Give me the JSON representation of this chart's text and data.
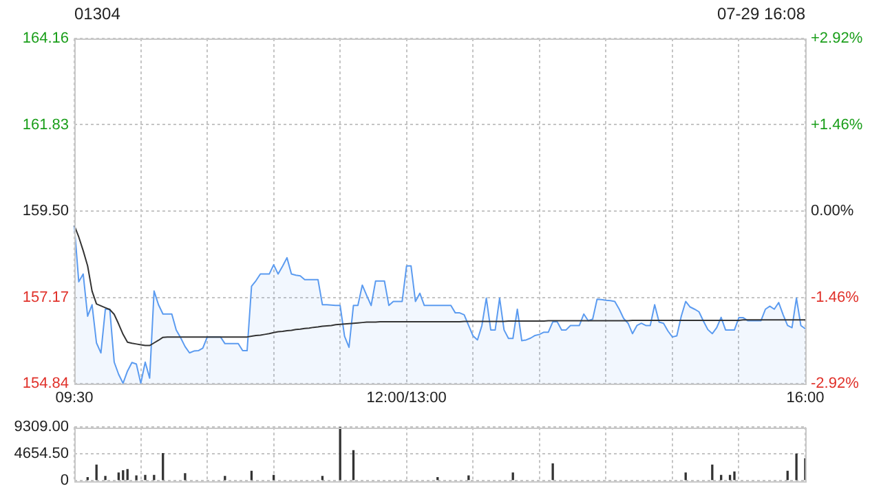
{
  "chart_data": [
    {
      "type": "line",
      "title": "01304",
      "subtitle": "07-29 16:08",
      "categories": [
        "09:30",
        null,
        null,
        null,
        null,
        null,
        null,
        null,
        null,
        null,
        null,
        null,
        null,
        null,
        null,
        null,
        null,
        null,
        null,
        null,
        null,
        null,
        null,
        null,
        null,
        null,
        null,
        null,
        null,
        null,
        null,
        null,
        null,
        null,
        null,
        null,
        null,
        null,
        null,
        null,
        null,
        null,
        null,
        null,
        null,
        null,
        null,
        null,
        null,
        null,
        null,
        null,
        null,
        null,
        null,
        null,
        null,
        null,
        null,
        null,
        null,
        null,
        null,
        null,
        null,
        null,
        null,
        null,
        null,
        null,
        null,
        null,
        null,
        null,
        null,
        "12:00/13:00",
        null,
        null,
        null,
        null,
        null,
        null,
        null,
        null,
        null,
        null,
        null,
        null,
        null,
        null,
        null,
        null,
        null,
        null,
        null,
        null,
        null,
        null,
        null,
        null,
        null,
        null,
        null,
        null,
        null,
        null,
        null,
        null,
        null,
        null,
        null,
        null,
        null,
        null,
        null,
        null,
        null,
        null,
        null,
        null,
        null,
        null,
        null,
        null,
        null,
        null,
        null,
        null,
        null,
        null,
        null,
        null,
        null,
        null,
        null,
        null,
        null,
        null,
        null,
        null,
        null,
        null,
        null,
        null,
        null,
        null,
        null,
        null,
        null,
        null,
        null,
        null,
        null,
        null,
        null,
        null,
        null,
        null,
        null,
        null,
        null,
        null,
        null,
        null,
        null,
        "16:00"
      ],
      "ylim": [
        154.84,
        164.16
      ],
      "yticks": [
        154.84,
        157.17,
        {
          "value": 159.5,
          "label": "159.50"
        },
        161.83,
        164.16
      ],
      "y2lim": [
        -2.92,
        2.92
      ],
      "y2ticks": [
        {
          "value": -2.92,
          "label": "-2.92%"
        },
        {
          "value": -1.46,
          "label": "-1.46%"
        },
        {
          "value": 0,
          "label": "0.00%"
        },
        {
          "value": 1.46,
          "label": "+1.46%"
        },
        {
          "value": 2.92,
          "label": "+2.92%"
        }
      ],
      "grid": true,
      "series": [
        {
          "type": "area",
          "color": "#5b9bf0",
          "values": [
            159.11,
            157.59,
            157.8,
            156.66,
            156.97,
            155.94,
            155.67,
            156.85,
            156.85,
            155.42,
            155.09,
            154.85,
            155.18,
            155.41,
            155.37,
            154.85,
            155.42,
            154.99,
            157.34,
            156.97,
            156.72,
            156.72,
            156.72,
            156.29,
            156.08,
            155.84,
            155.67,
            155.72,
            155.73,
            155.8,
            156.1,
            156.1,
            156.1,
            156.1,
            155.92,
            155.92,
            155.92,
            155.92,
            155.73,
            155.73,
            157.47,
            157.62,
            157.8,
            157.8,
            157.8,
            158.05,
            157.8,
            158.01,
            158.24,
            157.8,
            157.77,
            157.75,
            157.65,
            157.65,
            157.65,
            157.65,
            156.97,
            156.97,
            156.96,
            156.95,
            156.95,
            156.12,
            155.82,
            156.95,
            156.95,
            157.5,
            157.22,
            156.95,
            157.61,
            157.61,
            157.61,
            156.95,
            157.06,
            157.06,
            157.06,
            158.02,
            158.02,
            157.06,
            157.28,
            156.95,
            156.95,
            156.95,
            156.95,
            156.95,
            156.95,
            156.95,
            156.75,
            156.75,
            156.7,
            156.41,
            156.13,
            156.02,
            156.41,
            157.15,
            156.29,
            156.29,
            157.15,
            156.29,
            156.06,
            156.06,
            156.85,
            156.0,
            156.02,
            156.07,
            156.14,
            156.17,
            156.23,
            156.23,
            156.51,
            156.51,
            156.29,
            156.29,
            156.41,
            156.41,
            156.41,
            156.72,
            156.54,
            156.58,
            157.12,
            157.11,
            157.09,
            157.08,
            157.06,
            156.85,
            156.6,
            156.47,
            156.19,
            156.41,
            156.47,
            156.41,
            156.41,
            156.97,
            156.5,
            156.47,
            156.26,
            156.1,
            156.13,
            156.66,
            157.06,
            156.91,
            156.85,
            156.78,
            156.53,
            156.3,
            156.19,
            156.35,
            156.63,
            156.29,
            156.29,
            156.29,
            156.62,
            156.62,
            156.54,
            156.54,
            156.54,
            156.54,
            156.85,
            156.93,
            156.85,
            157.03,
            156.7,
            156.41,
            156.35,
            157.15,
            156.41,
            156.32
          ]
        },
        {
          "type": "line",
          "color": "#333333",
          "values": [
            159.11,
            158.8,
            158.43,
            158.02,
            157.34,
            156.99,
            156.94,
            156.89,
            156.84,
            156.71,
            156.45,
            156.17,
            155.96,
            155.93,
            155.91,
            155.89,
            155.87,
            155.87,
            155.94,
            156.01,
            156.09,
            156.1,
            156.1,
            156.1,
            156.1,
            156.1,
            156.1,
            156.1,
            156.1,
            156.1,
            156.1,
            156.1,
            156.1,
            156.1,
            156.1,
            156.1,
            156.1,
            156.1,
            156.1,
            156.1,
            156.12,
            156.14,
            156.15,
            156.17,
            156.19,
            156.22,
            156.24,
            156.25,
            156.27,
            156.28,
            156.3,
            156.31,
            156.33,
            156.34,
            156.36,
            156.37,
            156.39,
            156.4,
            156.41,
            156.43,
            156.44,
            156.45,
            156.46,
            156.47,
            156.48,
            156.49,
            156.5,
            156.5,
            156.5,
            156.51,
            156.51,
            156.51,
            156.51,
            156.51,
            156.51,
            156.51,
            156.51,
            156.51,
            156.51,
            156.51,
            156.51,
            156.51,
            156.51,
            156.51,
            156.51,
            156.51,
            156.51,
            156.51,
            156.52,
            156.52,
            156.52,
            156.52,
            156.52,
            156.52,
            156.52,
            156.52,
            156.52,
            156.52,
            156.53,
            156.53,
            156.53,
            156.53,
            156.53,
            156.53,
            156.53,
            156.53,
            156.53,
            156.54,
            156.54,
            156.54,
            156.54,
            156.54,
            156.54,
            156.54,
            156.54,
            156.54,
            156.54,
            156.54,
            156.54,
            156.54,
            156.54,
            156.54,
            156.54,
            156.54,
            156.54,
            156.54,
            156.55,
            156.55,
            156.55,
            156.55,
            156.55,
            156.55,
            156.55,
            156.55,
            156.55,
            156.55,
            156.55,
            156.55,
            156.55,
            156.55,
            156.55,
            156.55,
            156.55,
            156.55,
            156.55,
            156.55,
            156.55,
            156.55,
            156.55,
            156.55,
            156.55,
            156.56,
            156.56,
            156.56,
            156.56,
            156.56,
            156.56,
            156.56,
            156.56,
            156.56,
            156.56,
            156.56,
            156.56,
            156.56,
            156.56,
            156.56
          ]
        }
      ]
    },
    {
      "type": "bar",
      "categories": [
        null,
        null,
        null,
        null,
        null,
        null,
        null,
        null,
        null,
        null,
        null,
        null,
        null,
        null,
        null,
        null,
        null,
        null,
        null,
        null,
        null,
        null,
        null,
        null,
        null,
        null,
        null,
        null,
        null,
        null,
        null,
        null,
        null,
        null,
        null,
        null,
        null,
        null,
        null,
        null,
        null,
        null,
        null,
        null,
        null,
        null,
        null,
        null,
        null,
        null,
        null,
        null,
        null,
        null,
        null,
        null,
        null,
        null,
        null,
        null,
        null,
        null,
        null,
        null,
        null,
        null,
        null,
        null,
        null,
        null,
        null,
        null,
        null,
        null,
        null,
        null,
        null,
        null,
        null,
        null,
        null,
        null,
        null,
        null,
        null,
        null,
        null,
        null,
        null,
        null,
        null,
        null,
        null,
        null,
        null,
        null,
        null,
        null,
        null,
        null,
        null,
        null,
        null,
        null,
        null,
        null,
        null,
        null,
        null,
        null,
        null,
        null,
        null,
        null,
        null,
        null,
        null,
        null,
        null,
        null,
        null,
        null,
        null,
        null,
        null,
        null,
        null,
        null,
        null,
        null,
        null,
        null,
        null,
        null,
        null,
        null,
        null,
        null,
        null,
        null,
        null,
        null,
        null,
        null,
        null,
        null,
        null,
        null,
        null,
        null,
        null,
        null,
        null,
        null,
        null,
        null,
        null,
        null,
        null,
        null,
        null,
        null,
        null,
        null,
        null,
        null
      ],
      "ylim": [
        0,
        9309
      ],
      "yticks": [
        0,
        {
          "value": 4654.5,
          "label": "4654.50"
        },
        {
          "value": 9309,
          "label": "9309.00"
        }
      ],
      "grid": true,
      "tick_labels": "y",
      "series": [
        {
          "color": "#333333",
          "values": [
            null,
            null,
            null,
            500,
            null,
            2700,
            null,
            700,
            null,
            null,
            1300,
            1700,
            1900,
            null,
            800,
            null,
            900,
            null,
            900,
            null,
            4700,
            null,
            null,
            null,
            null,
            1200,
            null,
            null,
            null,
            null,
            null,
            null,
            null,
            null,
            700,
            null,
            null,
            null,
            null,
            null,
            1600,
            null,
            null,
            null,
            null,
            900,
            null,
            null,
            null,
            null,
            null,
            null,
            null,
            null,
            null,
            null,
            700,
            null,
            null,
            null,
            9300,
            null,
            null,
            5200,
            null,
            null,
            null,
            null,
            null,
            null,
            null,
            null,
            null,
            null,
            null,
            null,
            null,
            null,
            null,
            null,
            null,
            null,
            500,
            null,
            null,
            null,
            null,
            null,
            null,
            800,
            null,
            null,
            null,
            null,
            null,
            null,
            null,
            null,
            null,
            1300,
            null,
            null,
            null,
            null,
            null,
            null,
            null,
            null,
            2900,
            null,
            null,
            null,
            null,
            null,
            null,
            null,
            null,
            null,
            null,
            null,
            null,
            null,
            null,
            null,
            null,
            null,
            null,
            null,
            null,
            null,
            null,
            null,
            null,
            null,
            null,
            null,
            null,
            null,
            1300,
            null,
            null,
            null,
            null,
            null,
            2700,
            null,
            900,
            null,
            900,
            1500,
            null,
            null,
            null,
            null,
            null,
            null,
            null,
            null,
            null,
            null,
            null,
            1600,
            null,
            4600,
            null,
            3800
          ]
        }
      ]
    }
  ]
}
